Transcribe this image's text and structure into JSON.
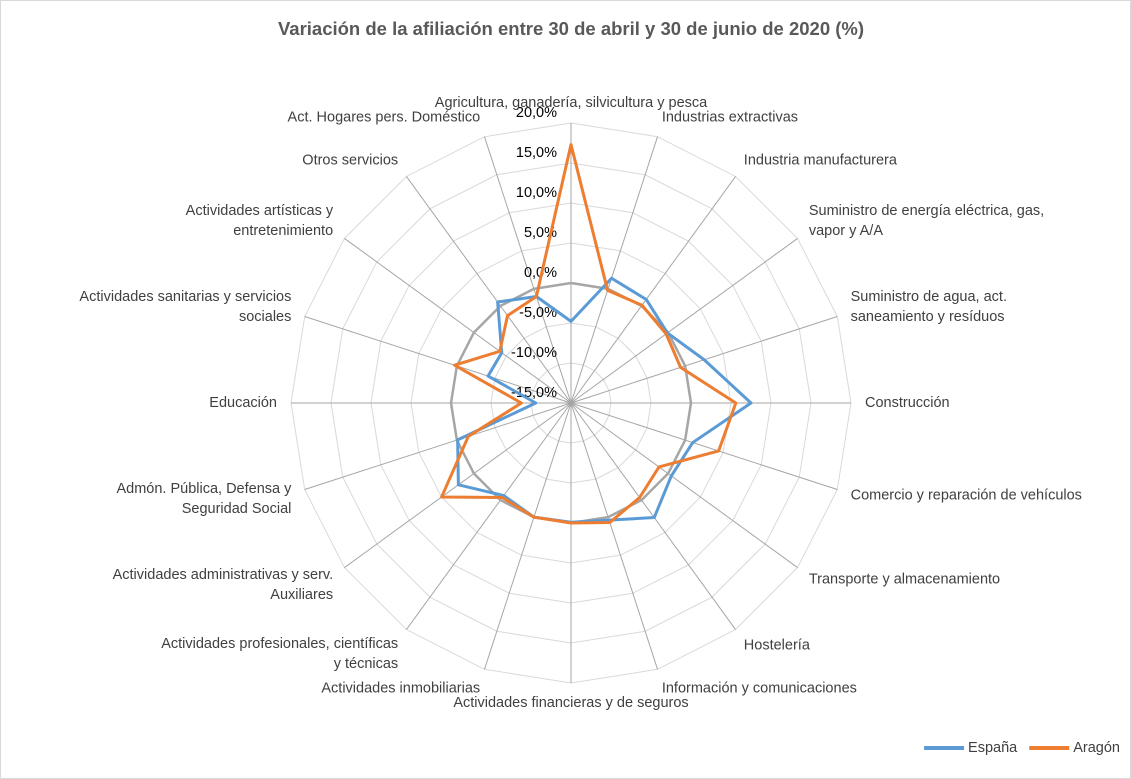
{
  "chart_data": {
    "type": "radar",
    "title": "Variación de la afiliación entre 30 de abril y 30 de junio de 2020 (%)",
    "categories": [
      "Agricultura, ganadería, silvicultura y pesca",
      "Industrias extractivas",
      "Industria manufacturera",
      "Suministro de energía eléctrica, gas, vapor y A/A",
      "Suministro de agua, act. saneamiento y resíduos",
      "Construcción",
      "Comercio y reparación de vehículos",
      "Transporte y almacenamiento",
      "Hostelería",
      "Información y comunicaciones",
      "Actividades financieras y de seguros",
      "Actividades inmobiliarias",
      "Actividades profesionales, científicas y técnicas",
      "Actividades administrativas y serv. Auxiliares",
      "Admón. Pública, Defensa y Seguridad Social",
      "Educación",
      "Actividades sanitarias y servicios sociales",
      "Actividades artísticas y entretenimiento",
      "Otros servicios",
      "Act. Hogares pers. Doméstico"
    ],
    "series": [
      {
        "name": "España",
        "color": "#5b9bd5",
        "values": [
          -4.8,
          1.4,
          1.0,
          -0.1,
          2.5,
          7.5,
          1.0,
          0.5,
          2.7,
          0.4,
          -0.1,
          0.0,
          -0.7,
          2.4,
          -0.1,
          -10.6,
          -4.1,
          -4.3,
          0.6,
          -1.0
        ]
      },
      {
        "name": "Aragón",
        "color": "#ed7d31",
        "values": [
          17.3,
          -0.2,
          0.1,
          -0.3,
          -0.6,
          5.6,
          4.4,
          -1.4,
          -0.4,
          0.7,
          0.0,
          0.0,
          -0.4,
          5.0,
          -1.5,
          -8.8,
          0.3,
          -4.0,
          -1.5,
          -1.0
        ]
      }
    ],
    "ylim": [
      -15,
      20
    ],
    "yticks": [
      {
        "value": -15,
        "label": "-15,0%"
      },
      {
        "value": -10,
        "label": "-10,0%"
      },
      {
        "value": -5,
        "label": "-5,0%"
      },
      {
        "value": 0,
        "label": "0,0%"
      },
      {
        "value": 5,
        "label": "5,0%"
      },
      {
        "value": 10,
        "label": "10,0%"
      },
      {
        "value": 15,
        "label": "15,0%"
      },
      {
        "value": 20,
        "label": "20,0%"
      }
    ],
    "grid": true,
    "legend": "bottom-right"
  }
}
